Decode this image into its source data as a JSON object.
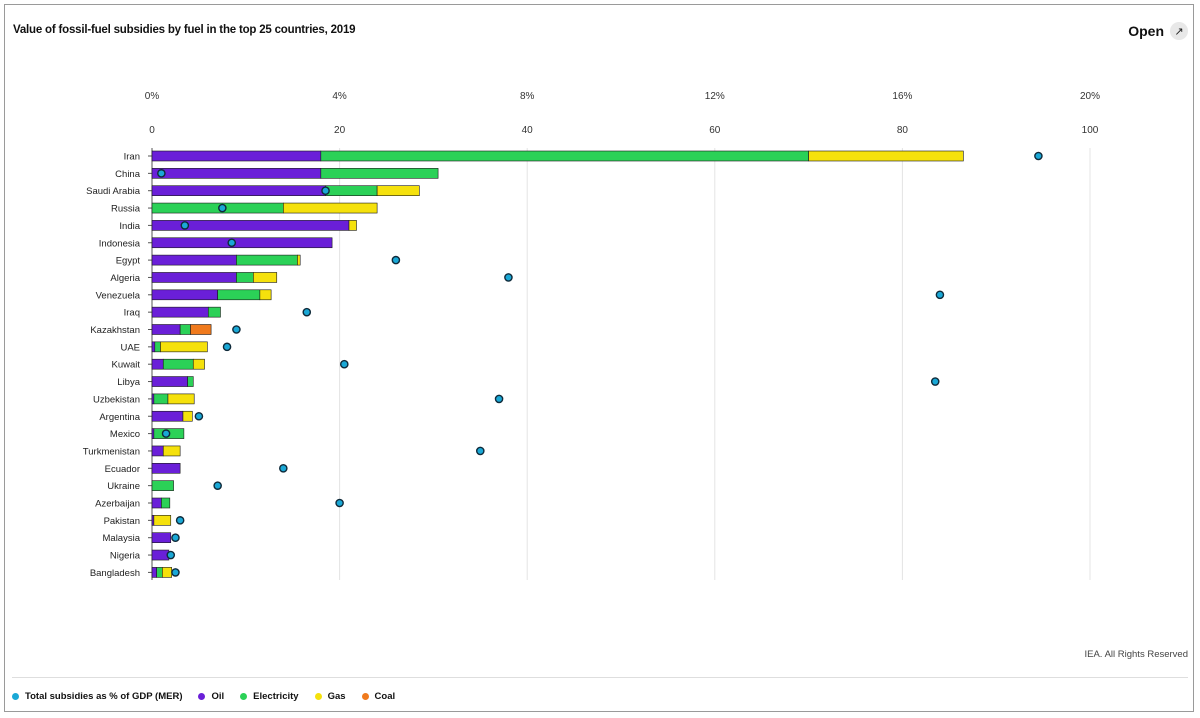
{
  "title": "Value of fossil-fuel subsidies by fuel in the top 25 countries, 2019",
  "open_label": "Open",
  "credit": "IEA. All Rights Reserved",
  "colors": {
    "oil": "#6a1fd8",
    "electricity": "#2bd157",
    "gas": "#f5e10c",
    "coal": "#f07a1d",
    "gdp_dot": "#1aa8d6"
  },
  "legend": [
    {
      "label": "Total subsidies as % of GDP (MER)",
      "color": "#1aa8d6"
    },
    {
      "label": "Oil",
      "color": "#6a1fd8"
    },
    {
      "label": "Electricity",
      "color": "#2bd157"
    },
    {
      "label": "Gas",
      "color": "#f5e10c"
    },
    {
      "label": "Coal",
      "color": "#f07a1d"
    }
  ],
  "chart_data": {
    "type": "bar",
    "orientation": "horizontal",
    "stacked": true,
    "categories": [
      "Iran",
      "China",
      "Saudi Arabia",
      "Russia",
      "India",
      "Indonesia",
      "Egypt",
      "Algeria",
      "Venezuela",
      "Iraq",
      "Kazakhstan",
      "UAE",
      "Kuwait",
      "Libya",
      "Uzbekistan",
      "Argentina",
      "Mexico",
      "Turkmenistan",
      "Ecuador",
      "Ukraine",
      "Azerbaijan",
      "Pakistan",
      "Malaysia",
      "Nigeria",
      "Bangladesh"
    ],
    "series": [
      {
        "name": "Oil",
        "values": [
          18.0,
          18.0,
          18.5,
          0.0,
          21.0,
          19.2,
          9.0,
          9.0,
          7.0,
          6.0,
          3.0,
          0.3,
          1.2,
          3.8,
          0.2,
          3.3,
          0.2,
          1.2,
          3.0,
          0.0,
          1.0,
          0.2,
          2.0,
          1.8,
          0.5
        ]
      },
      {
        "name": "Electricity",
        "values": [
          52.0,
          12.5,
          5.5,
          14.0,
          0.0,
          0.0,
          6.5,
          1.8,
          4.5,
          1.3,
          1.1,
          0.6,
          3.2,
          0.6,
          1.5,
          0.0,
          3.2,
          0.0,
          0.0,
          2.3,
          0.9,
          0.0,
          0.0,
          0.0,
          0.6
        ]
      },
      {
        "name": "Gas",
        "values": [
          16.5,
          0.0,
          4.5,
          10.0,
          0.8,
          0.0,
          0.3,
          2.5,
          1.2,
          0.0,
          0.0,
          5.0,
          1.2,
          0.0,
          2.8,
          1.0,
          0.0,
          1.8,
          0.0,
          0.0,
          0.0,
          1.8,
          0.0,
          0.0,
          1.0
        ]
      },
      {
        "name": "Coal",
        "values": [
          0,
          0,
          0,
          0,
          0,
          0,
          0,
          0,
          0,
          0,
          2.2,
          0,
          0,
          0,
          0,
          0,
          0,
          0,
          0,
          0,
          0,
          0,
          0,
          0,
          0
        ]
      }
    ],
    "gdp_percent": {
      "name": "Total subsidies as % of GDP (MER)",
      "values": [
        18.9,
        0.2,
        3.7,
        1.5,
        0.7,
        1.7,
        5.2,
        7.6,
        16.8,
        3.3,
        1.8,
        1.6,
        4.1,
        16.7,
        7.4,
        1.0,
        0.3,
        7.0,
        2.8,
        1.4,
        4.0,
        0.6,
        0.5,
        0.4,
        0.5
      ]
    },
    "x_bottom": {
      "ticks": [
        "0",
        "20",
        "40",
        "60",
        "80",
        "100"
      ],
      "range": [
        0,
        100
      ]
    },
    "x_top": {
      "ticks": [
        "0%",
        "4%",
        "8%",
        "12%",
        "16%",
        "20%"
      ],
      "range": [
        0,
        20
      ]
    },
    "grid": true,
    "legend_position": "bottom-left"
  }
}
